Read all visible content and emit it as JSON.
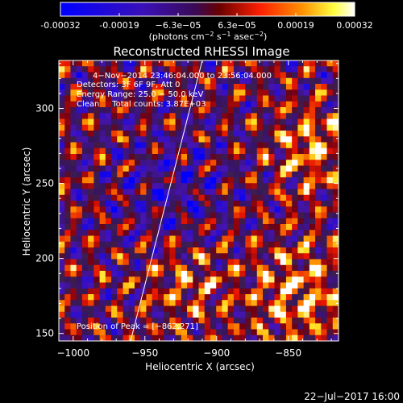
{
  "chart_data": {
    "type": "heatmap",
    "title": "Reconstructed RHESSI Image",
    "xlabel": "Heliocentric X (arcsec)",
    "ylabel": "Heliocentric Y (arcsec)",
    "xlim": [
      -1010,
      -815
    ],
    "ylim": [
      145,
      332
    ],
    "xticks": [
      -1000,
      -950,
      -900,
      -850
    ],
    "yticks": [
      150,
      200,
      250,
      300
    ],
    "colorbar": {
      "ticks": [
        "-0.00032",
        "-0.00019",
        "−6.3e−05",
        "6.3e−05",
        "0.00019",
        "0.00032"
      ],
      "units_parts": [
        "(photons cm",
        "−2",
        " s",
        "−1",
        " asec",
        "−2",
        ")"
      ],
      "range": [
        -0.00032,
        0.00032
      ]
    },
    "annotations": [
      "4−Nov−2014 23:46:04.000 to 23:56:04.000",
      "Detectors: 3F 6F 9F, Att 0",
      "Energy Range: 25.0 − 50.0 keV",
      "Clean     Total counts: 3.87E+03",
      "Position of Peak = [−862,271]"
    ],
    "limb_line": {
      "x": [
        -960,
        -910
      ],
      "y": [
        145,
        332
      ]
    },
    "timestamp": "22−Jul−2017 16:00"
  }
}
